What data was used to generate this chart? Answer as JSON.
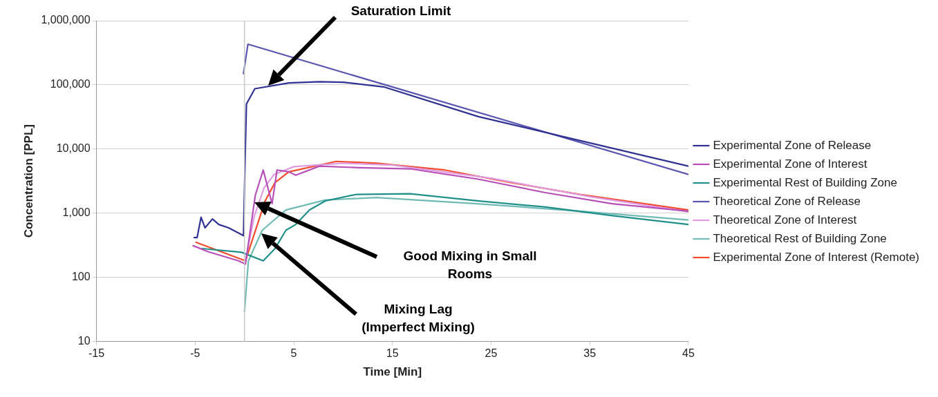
{
  "chart_data": {
    "type": "line",
    "xlabel": "Time [Min]",
    "ylabel": "Concentration [PPL]",
    "xlim": [
      -15,
      45
    ],
    "xticks": [
      -15,
      -5,
      5,
      15,
      25,
      35,
      45
    ],
    "ylim": [
      10,
      1000000
    ],
    "yticks": [
      10,
      100,
      {
        "value": 1000,
        "label": "1,000"
      },
      {
        "value": 10000,
        "label": "10,000"
      },
      {
        "value": 100000,
        "label": "100,000"
      },
      {
        "value": 1000000,
        "label": "1,000,000"
      }
    ],
    "log": "y",
    "grid": "y",
    "legend": "right",
    "marker": "none",
    "line_style": "solid",
    "ref_lines": [
      {
        "axis": "x",
        "value": 0,
        "color": "#c8c8c8"
      }
    ],
    "annotations": [
      "Saturation Limit",
      "Good Mixing in Small\nRooms",
      "Mixing Lag\n(Imperfect Mixing)"
    ],
    "series": [
      {
        "name": "Experimental Zone of Release",
        "color": "#2e3192",
        "x": [
          -5.1,
          -4.8,
          -4.4,
          -4.0,
          -3.25,
          -2.6,
          -1.6,
          -0.1,
          0.04,
          0.2,
          1.05,
          4.5,
          7.6,
          10,
          14.1,
          23.7,
          34,
          45
        ],
        "values": [
          415,
          415,
          860,
          590,
          810,
          665,
          590,
          445,
          4700,
          50000,
          87000,
          107000,
          112000,
          110000,
          93000,
          32000,
          13500,
          5400
        ]
      },
      {
        "name": "Experimental Zone of Interest",
        "color": "#b84fb8",
        "x": [
          -5.2,
          -3.7,
          -0.6,
          0.1,
          1.1,
          1.9,
          2.8,
          3.3,
          4.5,
          5.2,
          7.6,
          11.7,
          16.8,
          23.6,
          30.4,
          37.3,
          45
        ],
        "values": [
          310,
          250,
          180,
          160,
          1900,
          4700,
          1400,
          4700,
          4400,
          3900,
          5400,
          5100,
          4900,
          3400,
          2100,
          1400,
          1070
        ]
      },
      {
        "name": "Experimental Rest of Building Zone",
        "color": "#1f8f8a",
        "x": [
          -4.3,
          -0.3,
          1.9,
          3.1,
          4.2,
          5.2,
          6.6,
          8.2,
          11.3,
          16.8,
          23.6,
          30.4,
          37.3,
          45
        ],
        "values": [
          280,
          245,
          180,
          280,
          540,
          665,
          1120,
          1550,
          1950,
          2000,
          1550,
          1250,
          910,
          665
        ]
      },
      {
        "name": "Theoretical Zone of Release",
        "color": "#5a55b0",
        "x": [
          -0.1,
          0.35,
          45
        ],
        "values": [
          150000,
          430000,
          4000
        ]
      },
      {
        "name": "Theoretical Zone of Interest",
        "color": "#e09ae0",
        "x": [
          0.1,
          1,
          2,
          3,
          5,
          10,
          15,
          25,
          35,
          45
        ],
        "values": [
          180,
          900,
          2500,
          4000,
          5300,
          6000,
          5600,
          3500,
          1800,
          1050
        ]
      },
      {
        "name": "Theoretical Rest of Building Zone",
        "color": "#6fbab4",
        "x": [
          0,
          0.4,
          1.8,
          4.2,
          8.2,
          13.4,
          23.6,
          34,
          45
        ],
        "values": [
          29,
          180,
          540,
          1120,
          1600,
          1750,
          1400,
          1070,
          780
        ]
      },
      {
        "name": "Experimental Zone of Interest (Remote)",
        "color": "#f04a2a",
        "x": [
          -4.9,
          0.1,
          2.1,
          3.1,
          4.5,
          9.3,
          13.4,
          20.3,
          27,
          34,
          45
        ],
        "values": [
          350,
          180,
          1550,
          3000,
          4400,
          6400,
          6000,
          4700,
          3000,
          1950,
          1120
        ]
      }
    ]
  }
}
